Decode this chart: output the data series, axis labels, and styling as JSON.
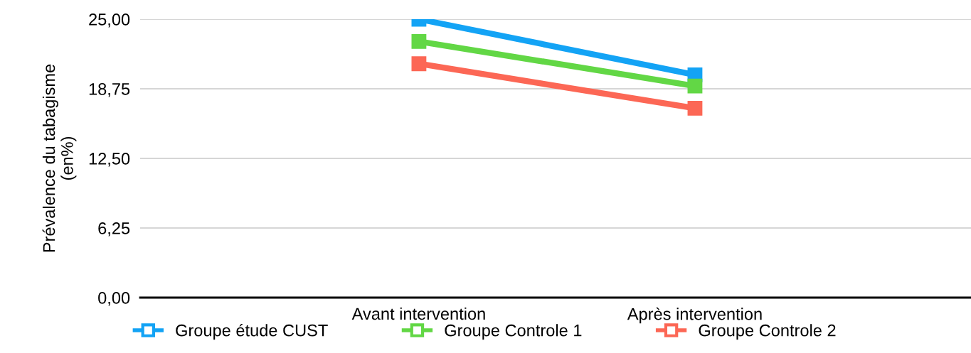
{
  "chart_data": {
    "type": "line",
    "ylabel": "Prévalence du tabagisme\n(en%)",
    "categories": [
      null,
      "Avant intervention",
      "Après intervention",
      null
    ],
    "series": [
      {
        "name": "Groupe étude CUST",
        "color": "#13a3f5",
        "values": [
          null,
          25.0,
          20.0,
          null
        ]
      },
      {
        "name": "Groupe Controle 1",
        "color": "#62d745",
        "values": [
          null,
          23.0,
          19.0,
          null
        ]
      },
      {
        "name": "Groupe Controle 2",
        "color": "#fc6755",
        "values": [
          null,
          21.0,
          17.0,
          null
        ]
      }
    ],
    "ylim": [
      0,
      25
    ],
    "yticks": [
      {
        "value": 0,
        "label": "0,00"
      },
      {
        "value": 6.25,
        "label": "6,25"
      },
      {
        "value": 12.5,
        "label": "12,50"
      },
      {
        "value": 18.75,
        "label": "18,75"
      },
      {
        "value": 25,
        "label": "25,00"
      }
    ],
    "grid": "y",
    "legend": "bottom",
    "marker": "square",
    "line_style": "solid"
  }
}
